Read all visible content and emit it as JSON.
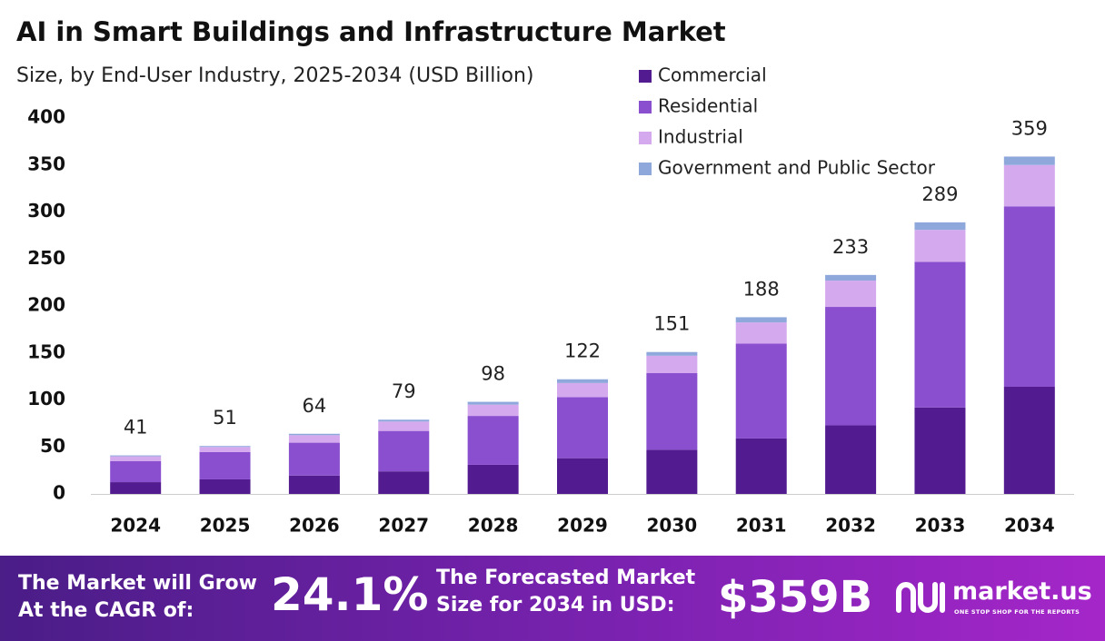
{
  "chart_data": {
    "type": "bar",
    "stacked": true,
    "title": "AI in Smart Buildings and Infrastructure Market",
    "subtitle": "Size, by End-User Industry, 2025-2034 (USD Billion)",
    "categories": [
      "2024",
      "2025",
      "2026",
      "2027",
      "2028",
      "2029",
      "2030",
      "2031",
      "2032",
      "2033",
      "2034"
    ],
    "series": [
      {
        "name": "Commercial",
        "color": "#521b8f",
        "values": [
          12.5,
          15.5,
          19.5,
          24,
          31,
          38,
          47,
          59,
          73,
          92,
          114
        ]
      },
      {
        "name": "Residential",
        "color": "#8a4fcf",
        "values": [
          22.5,
          29,
          35,
          43,
          52,
          65,
          81.5,
          101,
          126,
          155,
          192
        ]
      },
      {
        "name": "Industrial",
        "color": "#d4a9ee",
        "values": [
          5,
          5.5,
          8,
          10,
          12,
          15,
          18.5,
          22.5,
          28,
          34,
          44
        ]
      },
      {
        "name": "Government and Public Sector",
        "color": "#8fa8dc",
        "values": [
          1,
          1,
          1.5,
          2,
          3,
          4,
          4,
          5.5,
          6,
          8,
          9
        ]
      }
    ],
    "totals": [
      41,
      51,
      64,
      79,
      98,
      122,
      151,
      188,
      233,
      289,
      359
    ],
    "ylim": [
      0,
      400
    ],
    "yticks": [
      0,
      50,
      100,
      150,
      200,
      250,
      300,
      350,
      400
    ],
    "grid": false,
    "legend": "top-right"
  },
  "banner": {
    "cagr_label_1": "The Market will Grow",
    "cagr_label_2": "At the CAGR of:",
    "cagr_value": "24.1%",
    "size_label_1": "The Forecasted Market",
    "size_label_2": "Size for 2034 in USD:",
    "size_value": "$359B",
    "brand": "market.us",
    "tagline": "ONE STOP SHOP FOR THE REPORTS"
  }
}
